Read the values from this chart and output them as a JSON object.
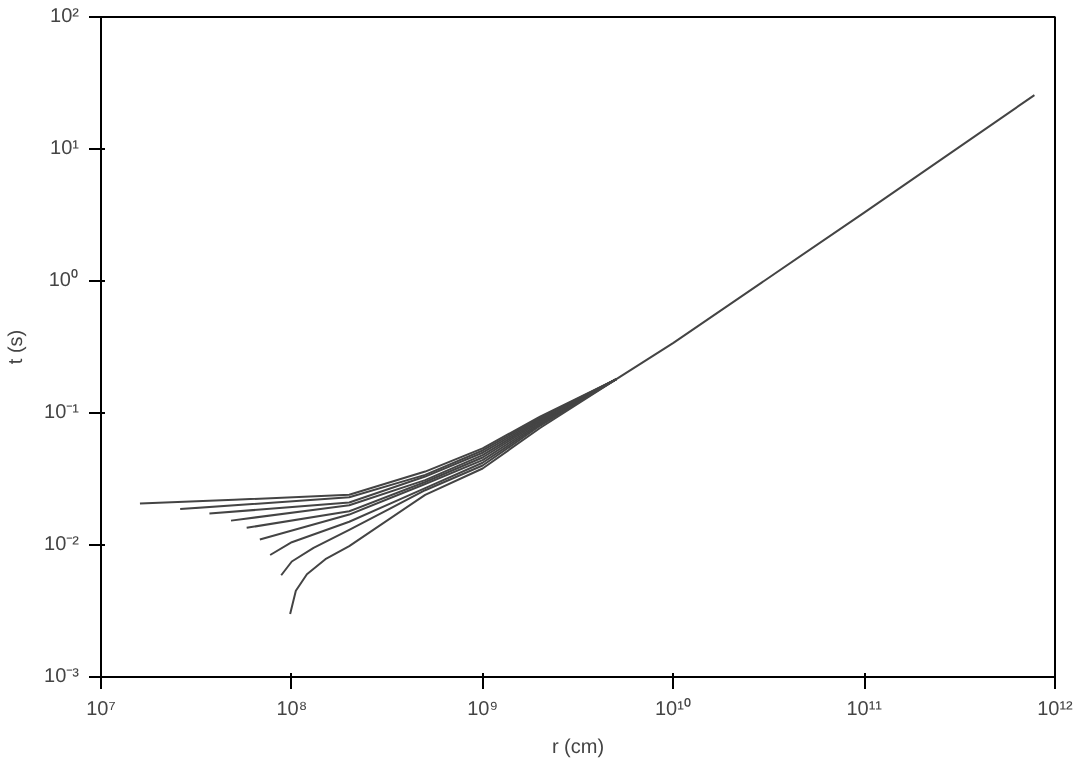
{
  "chart_data": {
    "type": "line",
    "xlabel": "r (cm)",
    "ylabel": "t (s)",
    "log": "xy",
    "grid": false,
    "xlim": [
      10000000.0,
      1000000000000.0
    ],
    "ylim": [
      0.001,
      100
    ],
    "xticks": [
      {
        "value": 10000000.0,
        "label": "10⁷"
      },
      {
        "value": 100000000.0,
        "label": "10⁸"
      },
      {
        "value": 1000000000.0,
        "label": "10⁹"
      },
      {
        "value": 10000000000.0,
        "label": "10¹⁰"
      },
      {
        "value": 100000000000.0,
        "label": "10¹¹"
      },
      {
        "value": 1000000000000.0,
        "label": "10¹²"
      }
    ],
    "yticks": [
      {
        "value": 0.001,
        "label": "10⁻³"
      },
      {
        "value": 0.01,
        "label": "10⁻²"
      },
      {
        "value": 0.1,
        "label": "10⁻¹"
      },
      {
        "value": 1,
        "label": "10⁰"
      },
      {
        "value": 10,
        "label": "10¹"
      },
      {
        "value": 100,
        "label": "10²"
      }
    ],
    "series": [
      {
        "color": "#444444",
        "x": [
          16000000.0,
          50000000.0,
          200000000.0,
          500000000.0,
          1000000000.0,
          2000000000.0,
          5000000000.0,
          10000000000.0,
          100000000000.0,
          780000000000.0
        ],
        "values": [
          0.0206,
          0.022,
          0.024,
          0.036,
          0.054,
          0.094,
          0.18,
          0.34,
          3.3,
          25.6
        ]
      },
      {
        "color": "#444444",
        "x": [
          26000000.0,
          200000000.0,
          500000000.0,
          1000000000.0,
          2000000000.0,
          5000000000.0
        ],
        "values": [
          0.0187,
          0.023,
          0.034,
          0.052,
          0.092,
          0.18
        ]
      },
      {
        "color": "#444444",
        "x": [
          37000000.0,
          200000000.0,
          500000000.0,
          1000000000.0,
          2000000000.0,
          5000000000.0
        ],
        "values": [
          0.0173,
          0.021,
          0.033,
          0.05,
          0.09,
          0.18
        ]
      },
      {
        "color": "#444444",
        "x": [
          48000000.0,
          200000000.0,
          500000000.0,
          1000000000.0,
          2000000000.0,
          5000000000.0
        ],
        "values": [
          0.0153,
          0.02,
          0.031,
          0.048,
          0.088,
          0.18
        ]
      },
      {
        "color": "#444444",
        "x": [
          58000000.0,
          200000000.0,
          500000000.0,
          1000000000.0,
          2000000000.0,
          5000000000.0
        ],
        "values": [
          0.0135,
          0.018,
          0.03,
          0.046,
          0.086,
          0.18
        ]
      },
      {
        "color": "#444444",
        "x": [
          68000000.0,
          200000000.0,
          500000000.0,
          1000000000.0,
          2000000000.0,
          5000000000.0
        ],
        "values": [
          0.011,
          0.017,
          0.029,
          0.044,
          0.084,
          0.18
        ]
      },
      {
        "color": "#444444",
        "x": [
          77000000.0,
          100000000.0,
          200000000.0,
          500000000.0,
          1000000000.0,
          2000000000.0,
          5000000000.0
        ],
        "values": [
          0.0084,
          0.0105,
          0.015,
          0.027,
          0.042,
          0.082,
          0.18
        ]
      },
      {
        "color": "#444444",
        "x": [
          88000000.0,
          100000000.0,
          130000000.0,
          200000000.0,
          500000000.0,
          1000000000.0,
          2000000000.0,
          5000000000.0
        ],
        "values": [
          0.0059,
          0.0075,
          0.0095,
          0.013,
          0.026,
          0.04,
          0.08,
          0.18
        ]
      },
      {
        "color": "#444444",
        "x": [
          98000000.0,
          105000000.0,
          120000000.0,
          150000000.0,
          200000000.0,
          500000000.0,
          1000000000.0,
          2000000000.0,
          5000000000.0
        ],
        "values": [
          0.003,
          0.0045,
          0.006,
          0.0078,
          0.0098,
          0.024,
          0.038,
          0.077,
          0.18
        ]
      }
    ]
  }
}
